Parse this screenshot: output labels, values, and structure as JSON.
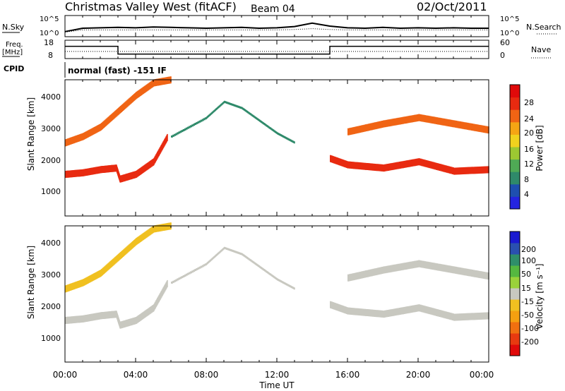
{
  "header": {
    "title": "Christmas Valley West (fitACF)",
    "beam": "Beam 04",
    "date": "02/Oct/2011"
  },
  "noise_panel": {
    "left_label": "N.Sky",
    "left_ticks": [
      "10^5",
      "10^0"
    ],
    "right_label": "N.Search",
    "right_ticks": [
      "10^5",
      "10^0"
    ]
  },
  "freq_panel": {
    "label_top": "Freq.",
    "label_unit": "[MHz]",
    "left_ticks": [
      "18",
      "8"
    ],
    "right_label": "Nave",
    "right_ticks": [
      "60",
      "0"
    ]
  },
  "cpid": {
    "label": "CPID",
    "text": "normal (fast) -151 IF"
  },
  "power_panel": {
    "ylabel": "Slant Range [km]",
    "yticks": [
      "1000",
      "2000",
      "3000",
      "4000"
    ],
    "colorbar_label": "Power [dB]",
    "colorbar_ticks": [
      "28",
      "24",
      "20",
      "16",
      "12",
      "8",
      "4"
    ],
    "colors": [
      "#2424e0",
      "#1e4fb0",
      "#2f8a6a",
      "#4faa55",
      "#9cc832",
      "#f0d21e",
      "#f5a514",
      "#f06414",
      "#e82a10",
      "#e00a0a"
    ]
  },
  "velocity_panel": {
    "ylabel": "Slant Range [km]",
    "yticks": [
      "1000",
      "2000",
      "3000",
      "4000"
    ],
    "colorbar_label": "Velocity [m s⁻¹]",
    "colorbar_ticks": [
      "200",
      "100",
      "50",
      "15",
      "-15",
      "-50",
      "-100",
      "-200"
    ],
    "colors": [
      "#1a1ad0",
      "#2a50b0",
      "#2f8f6a",
      "#55b840",
      "#9ad23a",
      "#c8c8c0",
      "#f0c020",
      "#f5a010",
      "#f07010",
      "#e83a10",
      "#e00a0a"
    ]
  },
  "xaxis": {
    "label": "Time UT",
    "ticks": [
      "00:00",
      "04:00",
      "08:00",
      "12:00",
      "16:00",
      "20:00",
      "00:00"
    ]
  },
  "chart_data": {
    "type": "heatmap",
    "x_range_hours": [
      0,
      24
    ],
    "y_range_km": [
      180,
      4500
    ],
    "power_range_db": [
      0,
      30
    ],
    "velocity_range_ms": [
      -250,
      250
    ],
    "noise_series": [
      {
        "name": "N.Sky",
        "values": [
          0.2,
          1.0,
          1.1,
          1.2,
          1.1,
          1.3,
          1.2,
          1.1,
          1.0,
          1.1,
          1.2,
          1.0,
          1.1,
          1.4,
          2.2,
          1.5,
          1.1,
          1.0,
          1.2,
          1.0,
          1.1,
          1.0,
          1.1,
          1.0,
          1.0
        ]
      },
      {
        "name": "N.Search",
        "values": [
          0.1,
          0.6,
          0.6,
          0.6,
          0.6,
          0.6,
          0.6,
          0.6,
          0.6,
          0.6,
          0.6,
          0.6,
          0.6,
          0.7,
          0.9,
          0.7,
          0.6,
          0.6,
          0.6,
          0.6,
          0.6,
          0.6,
          0.6,
          0.6,
          0.6
        ]
      }
    ],
    "frequency_mhz": {
      "x": [
        0,
        3,
        3,
        15,
        15,
        24
      ],
      "values": [
        15,
        15,
        10,
        10,
        15,
        15
      ]
    },
    "nave": {
      "x": [
        0,
        24
      ],
      "values": [
        22,
        22
      ]
    },
    "echo_bands": [
      {
        "x": [
          0,
          1,
          2,
          2.9,
          3.1,
          4,
          5,
          5.8
        ],
        "y": [
          1500,
          1550,
          1650,
          1700,
          1350,
          1500,
          1900,
          2700
        ],
        "power_db": 25,
        "velocity_ms": -20
      },
      {
        "x": [
          0,
          1,
          2,
          3,
          4,
          5,
          6
        ],
        "y": [
          2500,
          2700,
          3000,
          3500,
          4000,
          4400,
          4500
        ],
        "power_db": 24,
        "velocity_ms": -30
      },
      {
        "x": [
          15,
          16,
          18,
          20,
          22,
          24
        ],
        "y": [
          2000,
          1800,
          1700,
          1900,
          1600,
          1650
        ],
        "power_db": 27,
        "velocity_ms": -15
      },
      {
        "x": [
          16,
          18,
          20,
          22,
          24
        ],
        "y": [
          2850,
          3100,
          3300,
          3100,
          2900
        ],
        "power_db": 22,
        "velocity_ms": -20
      },
      {
        "x": [
          6,
          8,
          9,
          10,
          11,
          12,
          13
        ],
        "y": [
          2700,
          3300,
          3800,
          3600,
          3200,
          2800,
          2500
        ],
        "power_db": 8,
        "velocity_ms": 0
      }
    ],
    "title": "Christmas Valley West (fitACF)",
    "xlabel": "Time UT",
    "ylabel": "Slant Range [km]"
  }
}
